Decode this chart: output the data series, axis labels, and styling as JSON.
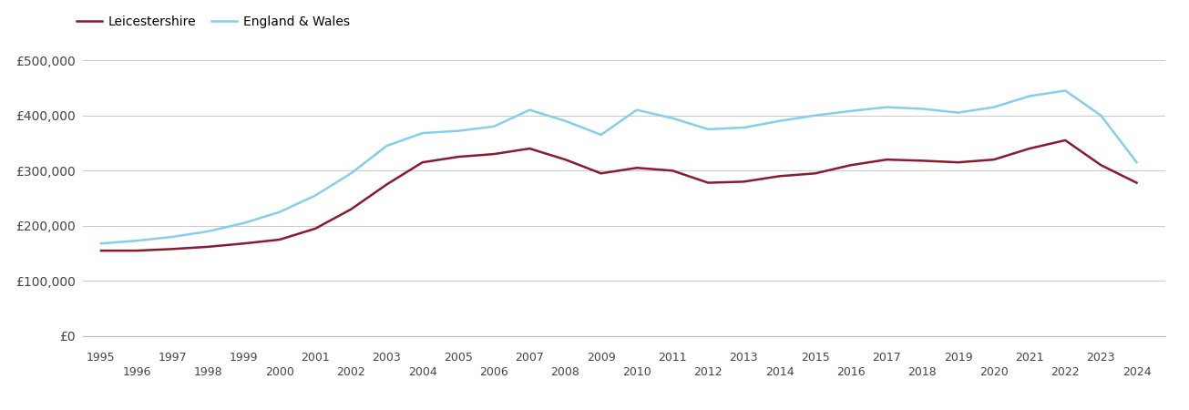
{
  "leicestershire_years": [
    1995,
    1996,
    1997,
    1998,
    1999,
    2000,
    2001,
    2002,
    2003,
    2004,
    2005,
    2006,
    2007,
    2008,
    2009,
    2010,
    2011,
    2012,
    2013,
    2014,
    2015,
    2016,
    2017,
    2018,
    2019,
    2020,
    2021,
    2022,
    2023,
    2024
  ],
  "leicestershire_values": [
    155000,
    155000,
    158000,
    162000,
    168000,
    175000,
    195000,
    230000,
    275000,
    315000,
    325000,
    330000,
    340000,
    320000,
    295000,
    305000,
    300000,
    278000,
    280000,
    290000,
    295000,
    310000,
    320000,
    318000,
    315000,
    320000,
    340000,
    355000,
    310000,
    278000
  ],
  "england_wales_years": [
    1995,
    1996,
    1997,
    1998,
    1999,
    2000,
    2001,
    2002,
    2003,
    2004,
    2005,
    2006,
    2007,
    2008,
    2009,
    2010,
    2011,
    2012,
    2013,
    2014,
    2015,
    2016,
    2017,
    2018,
    2019,
    2020,
    2021,
    2022,
    2023,
    2024
  ],
  "england_wales_values": [
    168000,
    173000,
    180000,
    190000,
    205000,
    225000,
    255000,
    295000,
    345000,
    368000,
    372000,
    380000,
    410000,
    390000,
    365000,
    410000,
    395000,
    375000,
    378000,
    390000,
    400000,
    408000,
    415000,
    412000,
    405000,
    415000,
    435000,
    445000,
    400000,
    315000
  ],
  "leics_color": "#8b1a2e",
  "ew_color": "#87ceeb",
  "background_color": "#ffffff",
  "grid_color": "#cccccc",
  "ylim": [
    0,
    520000
  ],
  "yticks": [
    0,
    100000,
    200000,
    300000,
    400000,
    500000
  ],
  "legend_leics": "Leicestershire",
  "legend_ew": "England & Wales"
}
